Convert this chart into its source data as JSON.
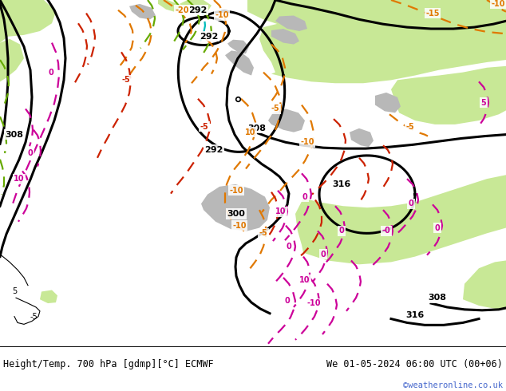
{
  "title_left": "Height/Temp. 700 hPa [gdmp][°C] ECMWF",
  "title_right": "We 01-05-2024 06:00 UTC (00+06)",
  "credit": "©weatheronline.co.uk",
  "figsize": [
    6.34,
    4.9
  ],
  "dpi": 100,
  "bg_color": "#d8d8d8",
  "green_color": "#c8e896",
  "credit_color": "#4466cc",
  "title_fontsize": 8.5,
  "black": "#000000",
  "orange": "#e07800",
  "red": "#cc2200",
  "magenta": "#cc0099",
  "lime": "#66aa00",
  "cyan": "#00bbbb"
}
